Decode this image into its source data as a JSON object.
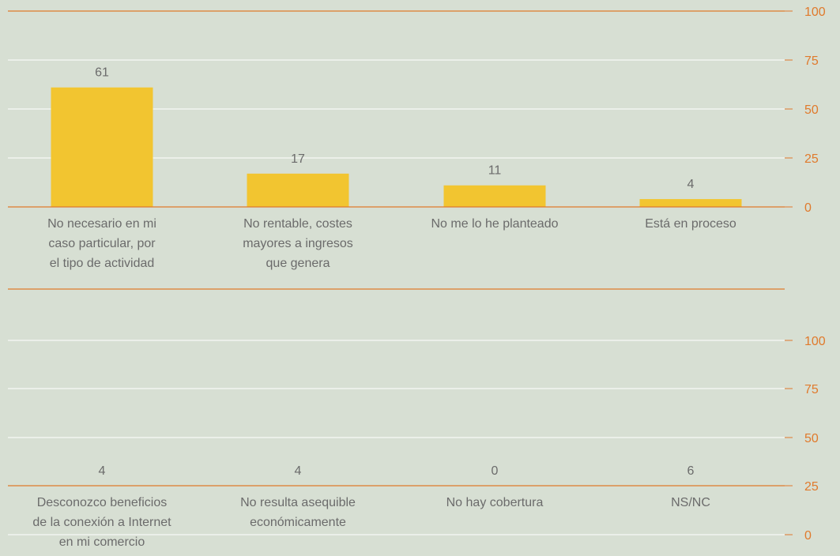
{
  "chart_data": [
    {
      "type": "bar",
      "categories": [
        "No necesario en mi caso particular, por el tipo de actividad",
        "No rentable, costes mayores a ingresos que genera",
        "No me lo he planteado",
        "Está en proceso"
      ],
      "category_lines": [
        [
          "No necesario en mi",
          "caso particular, por",
          "el tipo de actividad"
        ],
        [
          "No rentable, costes",
          "mayores a ingresos",
          "que genera"
        ],
        [
          "No me lo he planteado"
        ],
        [
          "Está en proceso"
        ]
      ],
      "values": [
        61,
        17,
        11,
        4
      ],
      "data_labels": [
        "61",
        "17",
        "11",
        "4"
      ],
      "yticks": [
        0,
        25,
        50,
        75,
        100
      ],
      "ytick_labels": [
        "0",
        "25",
        "50",
        "75",
        "100"
      ],
      "ylim": [
        0,
        100
      ],
      "y_axis_side": "right",
      "grid": true,
      "title": "",
      "xlabel": "",
      "ylabel": ""
    },
    {
      "type": "bar",
      "categories": [
        "Desconozco beneficios de la conexión a Internet en mi comercio",
        "No resulta asequible económicamente",
        "No hay cobertura",
        "NS/NC"
      ],
      "category_lines": [
        [
          "Desconozco beneficios",
          "de la conexión a Internet",
          "en mi comercio"
        ],
        [
          "No resulta asequible",
          "económicamente"
        ],
        [
          "No hay cobertura"
        ],
        [
          "NS/NC"
        ]
      ],
      "values": [
        4,
        4,
        0,
        6
      ],
      "data_labels": [
        "4",
        "4",
        "0",
        "6"
      ],
      "yticks": [
        0,
        25,
        50,
        75,
        100
      ],
      "ytick_labels": [
        "0",
        "25",
        "50",
        "75",
        "100"
      ],
      "ylim": [
        0,
        100
      ],
      "y_axis_side": "right",
      "grid": true,
      "title": "",
      "xlabel": "",
      "ylabel": ""
    }
  ],
  "colors": {
    "background": "#d7dfd3",
    "bar": "#f2c530",
    "axis_line": "#e07a2c",
    "gridline": "#ffffff",
    "tick_label": "#e07a2c",
    "text": "#6b6b6b"
  }
}
